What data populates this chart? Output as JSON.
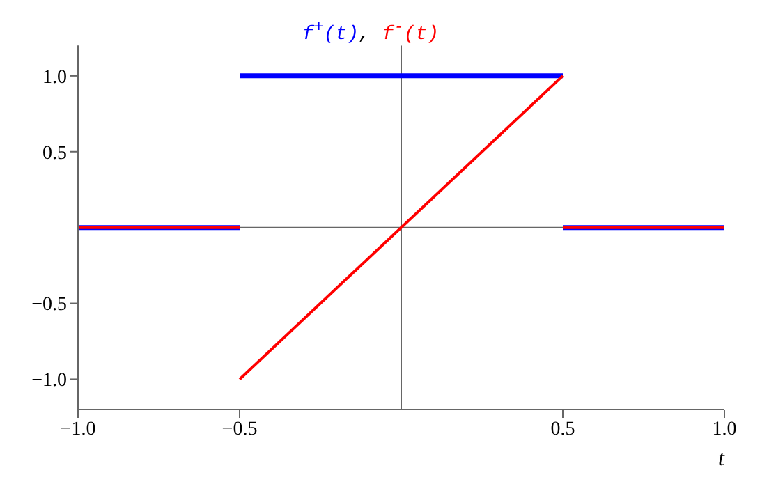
{
  "chart_data": {
    "type": "line",
    "xlabel": "t",
    "annotations": [
      ","
    ],
    "series": [
      {
        "name": "f$^{+}$(t)",
        "color": "#0000ff",
        "x": [
          -1,
          -0.5,
          null,
          -0.5,
          0.5,
          null,
          0.5,
          1
        ],
        "values": [
          0,
          0,
          null,
          1,
          1,
          null,
          0,
          0
        ]
      },
      {
        "name": "f$^{-}$(t)",
        "color": "#ff0000",
        "x": [
          -1,
          -0.5,
          null,
          -0.5,
          0.5,
          null,
          0.5,
          1
        ],
        "values": [
          0,
          0,
          null,
          -1,
          1,
          null,
          0,
          0
        ]
      }
    ],
    "xlim": [
      -1,
      1
    ],
    "xticks": [
      {
        "value": -1,
        "label": "−1.0"
      },
      -0.5,
      0.5,
      {
        "value": 1,
        "label": "1.0"
      }
    ],
    "ylim": [
      -1.2,
      1.2
    ],
    "yticks": [
      {
        "value": -1,
        "label": "−1.0"
      },
      -0.5,
      0.5,
      {
        "value": 1,
        "label": "1.0"
      }
    ],
    "grid": false,
    "legend": "top",
    "marker": "none",
    "line_style": "solid"
  }
}
